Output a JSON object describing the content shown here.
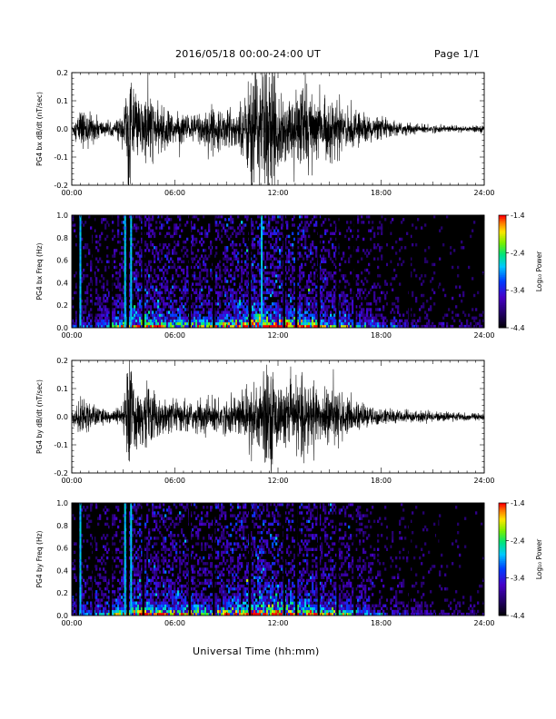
{
  "header": {
    "date_range": "2016/05/18   00:00-24:00 UT",
    "page": "Page 1/1"
  },
  "xlabel": "Universal Time (hh:mm)",
  "chart_data": [
    {
      "type": "line",
      "title": "",
      "xlabel": "",
      "ylabel": "PG4 bx dB/dt (nT/sec)",
      "xlim": [
        "00:00",
        "24:00"
      ],
      "ylim": [
        -0.2,
        0.2
      ],
      "x_ticks": [
        "00:00",
        "06:00",
        "12:00",
        "18:00",
        "24:00"
      ],
      "y_ticks": [
        "-0.2",
        "-0.1",
        "0.0",
        "0.1",
        "0.2"
      ],
      "activity_envelope": {
        "x_hours": [
          0,
          0.5,
          1,
          1.5,
          2,
          2.5,
          3,
          3.3,
          3.6,
          4,
          4.5,
          5,
          5.5,
          6,
          6.5,
          7,
          7.5,
          8,
          8.5,
          9,
          9.5,
          10,
          10.5,
          11,
          11.5,
          12,
          12.5,
          13,
          13.5,
          14,
          14.5,
          15,
          15.5,
          16,
          16.5,
          17,
          17.5,
          18,
          19,
          20,
          21,
          22,
          23,
          24
        ],
        "amplitude": [
          0.01,
          0.06,
          0.05,
          0.035,
          0.02,
          0.02,
          0.05,
          0.2,
          0.1,
          0.09,
          0.12,
          0.06,
          0.07,
          0.04,
          0.05,
          0.04,
          0.06,
          0.07,
          0.05,
          0.06,
          0.06,
          0.08,
          0.2,
          0.2,
          0.2,
          0.12,
          0.1,
          0.09,
          0.16,
          0.12,
          0.08,
          0.09,
          0.08,
          0.06,
          0.05,
          0.045,
          0.035,
          0.03,
          0.02,
          0.015,
          0.012,
          0.01,
          0.01,
          0.01
        ]
      }
    },
    {
      "type": "heatmap",
      "title": "",
      "xlabel": "",
      "ylabel": "PG4 bx Freq (Hz)",
      "xlim": [
        "00:00",
        "24:00"
      ],
      "ylim": [
        0.0,
        1.0
      ],
      "x_ticks": [
        "00:00",
        "06:00",
        "12:00",
        "18:00",
        "24:00"
      ],
      "y_ticks": [
        "0.0",
        "0.2",
        "0.4",
        "0.6",
        "0.8",
        "1.0"
      ],
      "colorbar": {
        "label": "Log₁₀ Power",
        "ticks": [
          "-1.4",
          "-2.4",
          "-3.4",
          "-4.4"
        ],
        "range": [
          -4.4,
          -1.4
        ]
      },
      "dropout_hours": [
        0.3,
        1.2,
        2.2,
        3.2,
        4.1,
        6.8,
        8.2,
        10.3,
        12.3,
        13.0,
        14.3,
        15.4,
        16.4,
        18.4,
        19.6,
        21.2
      ],
      "bright_streak_hours": [
        0.45,
        3.05,
        3.4,
        11.0
      ],
      "activity_hours": [
        0,
        2,
        3,
        4,
        6,
        8,
        10,
        11,
        12,
        13,
        14,
        16,
        17,
        18,
        20,
        22,
        24
      ],
      "activity_level": [
        0.3,
        0.45,
        0.6,
        0.8,
        0.6,
        0.6,
        0.75,
        0.95,
        0.85,
        0.75,
        0.7,
        0.5,
        0.4,
        0.3,
        0.2,
        0.15,
        0.12
      ]
    },
    {
      "type": "line",
      "title": "",
      "xlabel": "",
      "ylabel": "PG4 by dB/dt (nT/sec)",
      "xlim": [
        "00:00",
        "24:00"
      ],
      "ylim": [
        -0.2,
        0.2
      ],
      "x_ticks": [
        "00:00",
        "06:00",
        "12:00",
        "18:00",
        "24:00"
      ],
      "y_ticks": [
        "-0.2",
        "-0.1",
        "0.0",
        "0.1",
        "0.2"
      ],
      "activity_envelope": {
        "x_hours": [
          0,
          0.5,
          1,
          1.5,
          2,
          2.5,
          3,
          3.3,
          3.6,
          4,
          4.5,
          5,
          5.5,
          6,
          6.5,
          7,
          7.5,
          8,
          8.5,
          9,
          9.5,
          10,
          10.5,
          11,
          11.5,
          12,
          12.5,
          13,
          13.5,
          14,
          14.5,
          15,
          15.5,
          16,
          16.5,
          17,
          17.5,
          18,
          19,
          20,
          21,
          22,
          23,
          24
        ],
        "amplitude": [
          0.02,
          0.05,
          0.045,
          0.03,
          0.02,
          0.02,
          0.04,
          0.2,
          0.12,
          0.08,
          0.1,
          0.06,
          0.05,
          0.04,
          0.05,
          0.04,
          0.05,
          0.06,
          0.05,
          0.05,
          0.06,
          0.07,
          0.12,
          0.13,
          0.16,
          0.1,
          0.08,
          0.09,
          0.12,
          0.1,
          0.07,
          0.09,
          0.08,
          0.05,
          0.045,
          0.04,
          0.03,
          0.025,
          0.02,
          0.018,
          0.015,
          0.012,
          0.012,
          0.012
        ]
      }
    },
    {
      "type": "heatmap",
      "title": "",
      "xlabel": "",
      "ylabel": "PG4 by Freq (Hz)",
      "xlim": [
        "00:00",
        "24:00"
      ],
      "ylim": [
        0.0,
        1.0
      ],
      "x_ticks": [
        "00:00",
        "06:00",
        "12:00",
        "18:00",
        "24:00"
      ],
      "y_ticks": [
        "0.0",
        "0.2",
        "0.4",
        "0.6",
        "0.8",
        "1.0"
      ],
      "colorbar": {
        "label": "Log₁₀ Power",
        "ticks": [
          "-1.4",
          "-2.4",
          "-3.4",
          "-4.4"
        ],
        "range": [
          -4.4,
          -1.4
        ]
      },
      "dropout_hours": [
        0.3,
        1.2,
        2.2,
        3.2,
        4.1,
        6.8,
        8.2,
        10.3,
        12.3,
        13.0,
        14.3,
        15.4,
        16.4,
        18.4,
        19.6,
        21.2
      ],
      "bright_streak_hours": [
        0.45,
        3.05,
        3.4
      ],
      "activity_hours": [
        0,
        2,
        3,
        4,
        6,
        8,
        10,
        11,
        12,
        13,
        14,
        16,
        17,
        18,
        20,
        22,
        24
      ],
      "activity_level": [
        0.35,
        0.45,
        0.6,
        0.8,
        0.65,
        0.6,
        0.75,
        0.9,
        0.85,
        0.75,
        0.7,
        0.55,
        0.45,
        0.3,
        0.2,
        0.15,
        0.12
      ]
    }
  ]
}
